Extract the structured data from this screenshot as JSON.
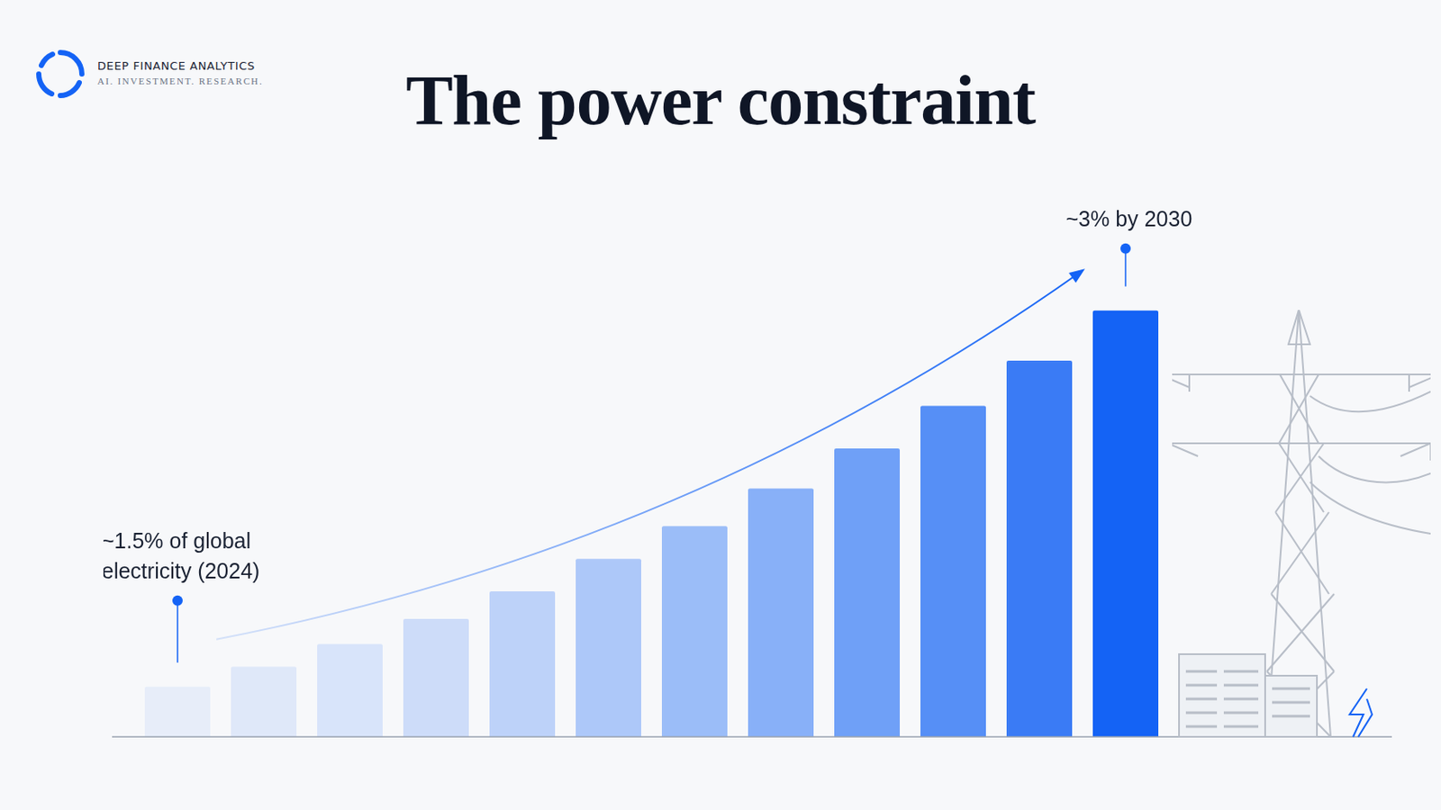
{
  "brand": {
    "name": "DEEP FINANCE ANALYTICS",
    "tagline": "AI. INVESTMENT. RESEARCH."
  },
  "chart_data": {
    "type": "bar",
    "title": "The power constraint",
    "categories": [
      null,
      null,
      null,
      null,
      null,
      null,
      null,
      null,
      null,
      null,
      null,
      null
    ],
    "values": [
      1.5,
      1.58,
      1.67,
      1.77,
      1.88,
      2.01,
      2.14,
      2.29,
      2.45,
      2.62,
      2.8,
      3.0
    ],
    "colors": [
      "#e7edf9",
      "#dfe8f9",
      "#d8e4fa",
      "#cddcf9",
      "#bdd2f9",
      "#adc8f9",
      "#9bbdf8",
      "#88b0f8",
      "#6fa0f7",
      "#568ff6",
      "#3a7bf5",
      "#1463f5"
    ],
    "ylim": [
      1.3,
      3.6
    ],
    "grid": false,
    "tick_labels": false,
    "annotations": [
      "~1.5% of global electricity (2024)",
      "~3% by 2030"
    ]
  }
}
